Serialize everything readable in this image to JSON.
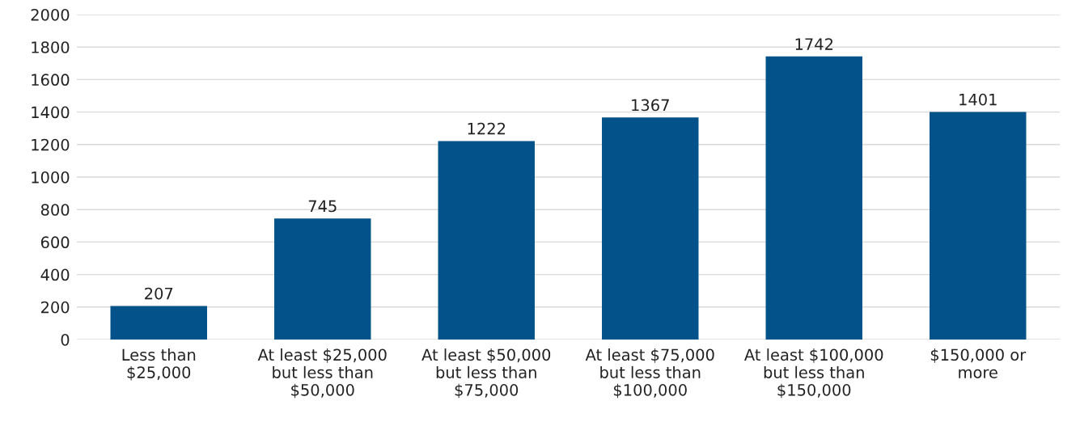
{
  "chart_data": {
    "type": "bar",
    "categories": [
      "Less than\n$25,000",
      "At least $25,000\nbut less than\n$50,000",
      "At least $50,000\nbut less than\n$75,000",
      "At least $75,000\nbut less than\n$100,000",
      "At least $100,000\nbut less than\n$150,000",
      "$150,000 or\nmore"
    ],
    "values": [
      207,
      745,
      1222,
      1367,
      1742,
      1401
    ],
    "color": "#03538a",
    "ylim": [
      0,
      2000
    ],
    "yticks": [
      0,
      200,
      400,
      600,
      800,
      1000,
      1200,
      1400,
      1600,
      1800,
      2000
    ],
    "grid": "y",
    "data_labels": true
  }
}
